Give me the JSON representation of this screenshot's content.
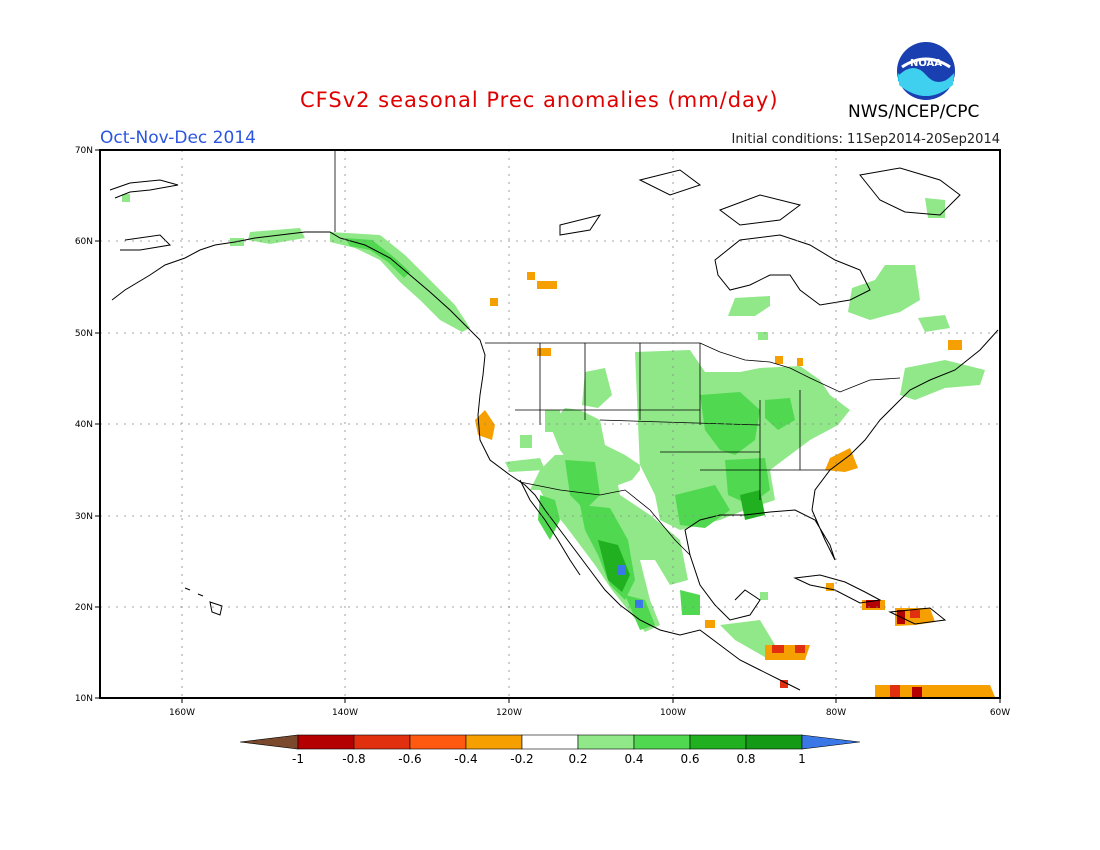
{
  "header": {
    "title": "CFSv2 seasonal Prec anomalies (mm/day)",
    "season": "Oct-Nov-Dec 2014",
    "initial_conditions": "Initial conditions: 11Sep2014-20Sep2014",
    "agency": "NWS/NCEP/CPC",
    "logo_text": "NOAA"
  },
  "map": {
    "lon_ticks": [
      "160W",
      "140W",
      "120W",
      "100W",
      "80W",
      "60W"
    ],
    "lat_ticks": [
      "70N",
      "60N",
      "50N",
      "40N",
      "30N",
      "20N",
      "10N"
    ]
  },
  "colorbar": {
    "labels": [
      "-1",
      "-0.8",
      "-0.6",
      "-0.4",
      "-0.2",
      "0.2",
      "0.4",
      "0.6",
      "0.8",
      "1"
    ],
    "colors": [
      "#7b4a2e",
      "#b40000",
      "#e03010",
      "#ff5a10",
      "#f5a000",
      "#ffffff",
      "#90e888",
      "#50d850",
      "#20b020",
      "#159a15",
      "#3a78e8"
    ]
  }
}
